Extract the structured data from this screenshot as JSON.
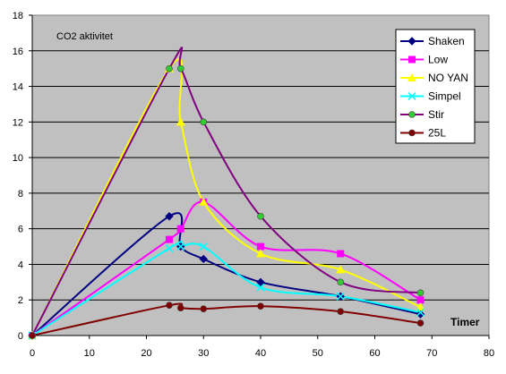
{
  "chart_data": {
    "type": "line",
    "title": "CO2 aktivitet",
    "xlabel": "Timer",
    "ylabel": "",
    "xlim": [
      0,
      80
    ],
    "ylim": [
      0,
      18
    ],
    "x_ticks": [
      0,
      10,
      20,
      30,
      40,
      50,
      60,
      70,
      80
    ],
    "y_ticks": [
      0,
      2,
      4,
      6,
      8,
      10,
      12,
      14,
      16,
      18
    ],
    "grid": "horizontal",
    "legend_position": "right",
    "plot_background": "#c0c0c0",
    "series": [
      {
        "name": "Shaken",
        "color": "#000080",
        "marker": "diamond",
        "marker_color": "#000080",
        "x": [
          0,
          24,
          26,
          30,
          40,
          54,
          68
        ],
        "y": [
          0,
          6.7,
          5.0,
          4.3,
          3.0,
          2.2,
          1.2
        ]
      },
      {
        "name": "Low",
        "color": "#ff00ff",
        "marker": "square",
        "marker_color": "#ff00ff",
        "x": [
          0,
          24,
          26,
          30,
          40,
          54,
          68
        ],
        "y": [
          0,
          5.4,
          6.0,
          7.5,
          5.0,
          4.6,
          2.0
        ]
      },
      {
        "name": "NO YAN",
        "color": "#ffff00",
        "marker": "triangle",
        "marker_color": "#ffff00",
        "x": [
          0,
          24,
          26,
          30,
          40,
          54,
          68
        ],
        "y": [
          0,
          15.0,
          12.0,
          7.5,
          4.6,
          3.7,
          1.6
        ]
      },
      {
        "name": "Simpel",
        "color": "#00ffff",
        "marker": "x",
        "marker_color": "#00ffff",
        "x": [
          0,
          24,
          26,
          30,
          40,
          54,
          68
        ],
        "y": [
          0,
          4.9,
          5.0,
          5.0,
          2.7,
          2.2,
          1.3
        ]
      },
      {
        "name": "Stir",
        "color": "#800080",
        "marker": "circle",
        "marker_color": "#33cc33",
        "x": [
          0,
          24,
          26,
          30,
          40,
          54,
          68
        ],
        "y": [
          0,
          15.0,
          15.0,
          12.0,
          6.7,
          3.0,
          2.4
        ]
      },
      {
        "name": "25L",
        "color": "#800000",
        "marker": "circle",
        "marker_color": "#800000",
        "x": [
          0,
          24,
          26,
          30,
          40,
          54,
          68
        ],
        "y": [
          0,
          1.7,
          1.55,
          1.5,
          1.65,
          1.35,
          0.7
        ]
      }
    ]
  }
}
